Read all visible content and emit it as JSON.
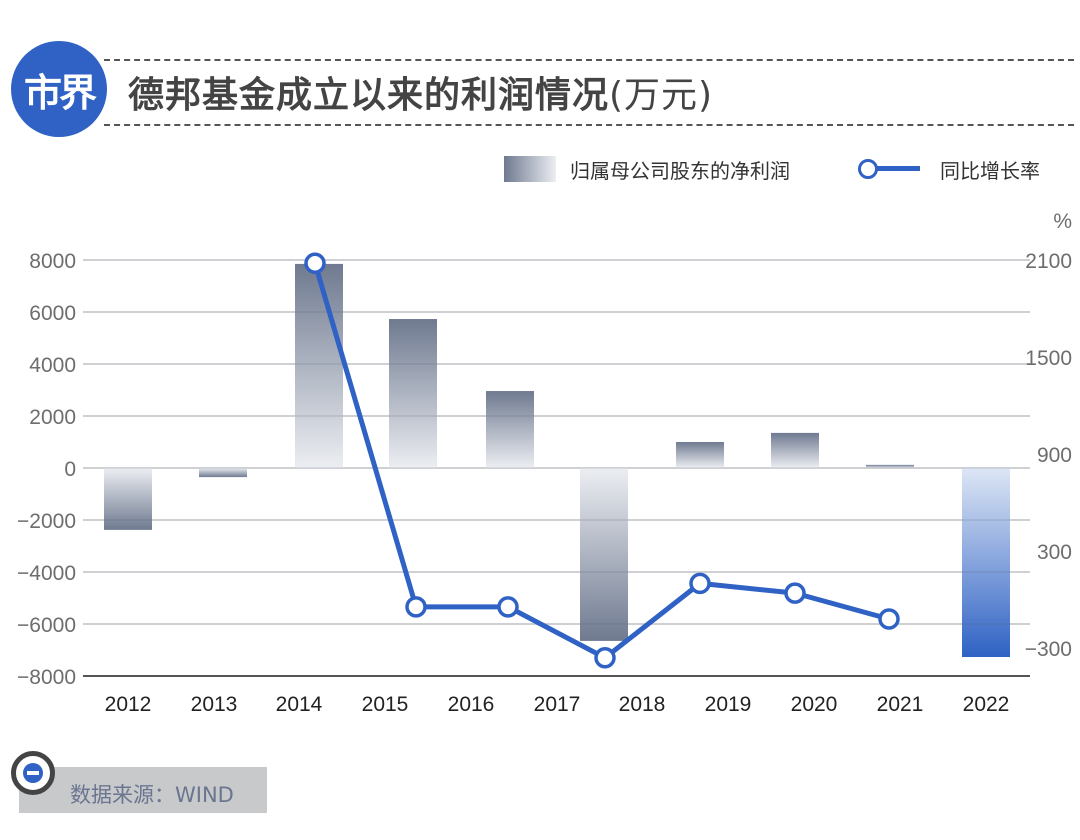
{
  "header": {
    "logo_text": "市界",
    "title": "德邦基金成立以来的利润情况",
    "title_unit": "(万元)"
  },
  "legend": {
    "bar_label": "归属母公司股东的净利润",
    "line_label": "同比增长率"
  },
  "axes": {
    "right_unit": "%",
    "left_ticks": [
      "8000",
      "6000",
      "4000",
      "2000",
      "0",
      "-2000",
      "-4000",
      "-6000",
      "-8000"
    ],
    "right_ticks": [
      "2100",
      "1500",
      "900",
      "300",
      "−300"
    ],
    "x_ticks": [
      "2012",
      "2013",
      "2014",
      "2015",
      "2016",
      "2017",
      "2018",
      "2019",
      "2020",
      "2021",
      "2022"
    ]
  },
  "footer": {
    "source": "数据来源：WIND"
  },
  "colors": {
    "accent": "#2f62c4",
    "bar_dark": "#6f7a90",
    "bar_light": "#eceef2",
    "bar_2022_dark": "#2f62c4",
    "bar_2022_light": "#dde6f5"
  },
  "chart_data": {
    "type": "bar+line",
    "title": "德邦基金成立以来的利润情况(万元)",
    "categories": [
      "2012",
      "2013",
      "2014",
      "2015",
      "2016",
      "2017",
      "2018",
      "2019",
      "2020",
      "2021",
      "2022"
    ],
    "series": [
      {
        "name": "归属母公司股东的净利润",
        "type": "bar",
        "axis": "left",
        "unit": "万元",
        "values": [
          -2380,
          -350,
          7850,
          5730,
          2960,
          -6650,
          1000,
          1350,
          120,
          -7270
        ]
      },
      {
        "name": "同比增长率",
        "type": "line",
        "axis": "right",
        "unit": "%",
        "values": [
          2080,
          -45,
          -45,
          -360,
          100,
          40,
          -120
        ]
      }
    ],
    "note": "Bars and line points are drawn offset from the x labels in the source; 10 bars and 7 line points are visible across the 11 year labels.",
    "ylim_left": [
      -8000,
      8000
    ],
    "ylim_right": [
      -300,
      2100
    ],
    "xlabel": "",
    "ylabel_left": "",
    "ylabel_right": "%",
    "legend_position": "top-right",
    "grid": true
  }
}
